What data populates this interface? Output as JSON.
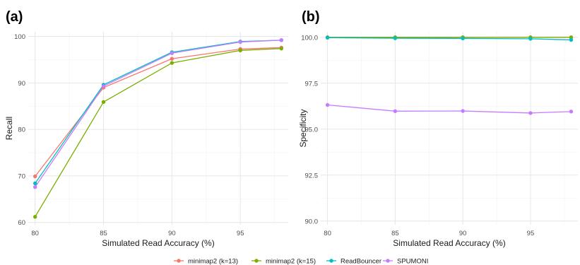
{
  "legend": [
    {
      "name": "minimap2 (k=13)",
      "color": "#F8766D"
    },
    {
      "name": "minimap2 (k=15)",
      "color": "#7CAE00"
    },
    {
      "name": "ReadBouncer",
      "color": "#00BFC4"
    },
    {
      "name": "SPUMONI",
      "color": "#C77CFF"
    }
  ],
  "chart_data": [
    {
      "panel_label": "(a)",
      "type": "line",
      "xlabel": "Simulated Read Accuracy (%)",
      "ylabel": "Recall",
      "xlim": [
        79.5,
        98.5
      ],
      "ylim": [
        59.5,
        101
      ],
      "xticks": [
        80,
        85,
        90,
        95
      ],
      "yticks": [
        60,
        70,
        80,
        90,
        100
      ],
      "ytick_labels": [
        "60",
        "70",
        "80",
        "90",
        "100"
      ],
      "grid": true,
      "x": [
        80,
        85,
        90,
        95,
        98
      ],
      "series": [
        {
          "name": "minimap2 (k=13)",
          "color": "#F8766D",
          "values": [
            69.9,
            89.0,
            95.2,
            97.3,
            97.6
          ]
        },
        {
          "name": "minimap2 (k=15)",
          "color": "#7CAE00",
          "values": [
            61.2,
            85.9,
            94.3,
            97.0,
            97.4
          ]
        },
        {
          "name": "ReadBouncer",
          "color": "#00BFC4",
          "values": [
            68.4,
            89.6,
            96.6,
            98.9,
            99.2
          ]
        },
        {
          "name": "SPUMONI",
          "color": "#C77CFF",
          "values": [
            67.6,
            89.3,
            96.4,
            98.8,
            99.2
          ]
        }
      ]
    },
    {
      "panel_label": "(b)",
      "type": "line",
      "xlabel": "Simulated Read Accuracy (%)",
      "ylabel": "Specificity",
      "xlim": [
        79.5,
        98.5
      ],
      "ylim": [
        89.8,
        100.3
      ],
      "xticks": [
        80,
        85,
        90,
        95
      ],
      "yticks": [
        90,
        92.5,
        95,
        97.5,
        100
      ],
      "ytick_labels": [
        "90.0",
        "92.5",
        "95.0",
        "97.5",
        "100.0"
      ],
      "grid": true,
      "x": [
        80,
        85,
        90,
        95,
        98
      ],
      "series": [
        {
          "name": "minimap2 (k=13)",
          "color": "#F8766D",
          "values": [
            100.0,
            100.0,
            100.0,
            100.0,
            100.0
          ]
        },
        {
          "name": "minimap2 (k=15)",
          "color": "#7CAE00",
          "values": [
            100.0,
            100.0,
            100.0,
            100.0,
            100.0
          ]
        },
        {
          "name": "ReadBouncer",
          "color": "#00BFC4",
          "values": [
            99.98,
            99.95,
            99.94,
            99.92,
            99.86
          ]
        },
        {
          "name": "SPUMONI",
          "color": "#C77CFF",
          "values": [
            96.32,
            95.98,
            95.99,
            95.88,
            95.96
          ]
        }
      ]
    }
  ]
}
